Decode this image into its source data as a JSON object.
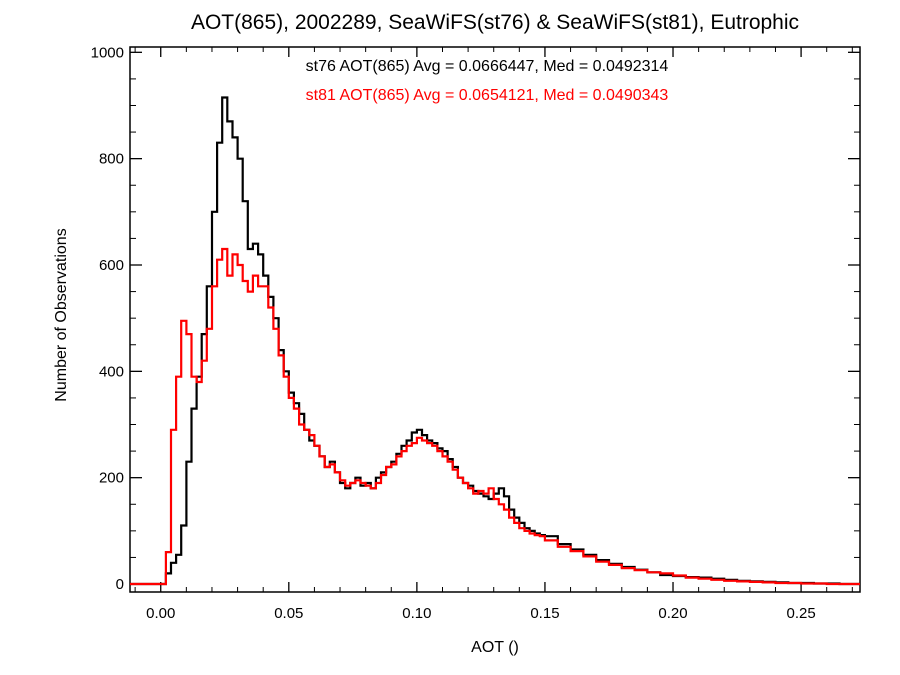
{
  "chart_data": {
    "type": "line",
    "style": "step-histogram",
    "title": "AOT(865), 2002289, SeaWiFS(st76) & SeaWiFS(st81), Eutrophic",
    "xlabel": "AOT ()",
    "ylabel": "Number of Observations",
    "xlim": [
      -0.012,
      0.273
    ],
    "ylim": [
      -15,
      1010
    ],
    "xticks": [
      {
        "value": 0.0,
        "label": "0.00"
      },
      {
        "value": 0.05,
        "label": "0.05"
      },
      {
        "value": 0.1,
        "label": "0.10"
      },
      {
        "value": 0.15,
        "label": "0.15"
      },
      {
        "value": 0.2,
        "label": "0.20"
      },
      {
        "value": 0.25,
        "label": "0.25"
      }
    ],
    "yticks": [
      {
        "value": 0,
        "label": "0"
      },
      {
        "value": 200,
        "label": "200"
      },
      {
        "value": 400,
        "label": "400"
      },
      {
        "value": 600,
        "label": "600"
      },
      {
        "value": 800,
        "label": "800"
      },
      {
        "value": 1000,
        "label": "1000"
      }
    ],
    "grid": false,
    "annotations": [
      {
        "text": "st76 AOT(865) Avg = 0.0666447, Med = 0.0492314",
        "color": "#000000"
      },
      {
        "text": "st81 AOT(865) Avg = 0.0654121, Med = 0.0490343",
        "color": "#ff0000"
      }
    ],
    "series": [
      {
        "color": "#000000",
        "x": [
          -0.012,
          0.0,
          0.002,
          0.004,
          0.006,
          0.008,
          0.01,
          0.012,
          0.014,
          0.016,
          0.018,
          0.02,
          0.022,
          0.024,
          0.026,
          0.028,
          0.03,
          0.032,
          0.034,
          0.036,
          0.038,
          0.04,
          0.042,
          0.044,
          0.046,
          0.048,
          0.05,
          0.052,
          0.054,
          0.056,
          0.058,
          0.06,
          0.062,
          0.064,
          0.066,
          0.068,
          0.07,
          0.072,
          0.074,
          0.076,
          0.078,
          0.08,
          0.082,
          0.084,
          0.086,
          0.088,
          0.09,
          0.092,
          0.094,
          0.096,
          0.098,
          0.1,
          0.102,
          0.104,
          0.106,
          0.108,
          0.11,
          0.112,
          0.114,
          0.116,
          0.118,
          0.12,
          0.122,
          0.124,
          0.126,
          0.128,
          0.13,
          0.132,
          0.134,
          0.136,
          0.138,
          0.14,
          0.142,
          0.144,
          0.146,
          0.148,
          0.15,
          0.155,
          0.16,
          0.165,
          0.17,
          0.175,
          0.18,
          0.185,
          0.19,
          0.195,
          0.2,
          0.205,
          0.21,
          0.215,
          0.22,
          0.225,
          0.23,
          0.235,
          0.24,
          0.245,
          0.25,
          0.255,
          0.26,
          0.265,
          0.27
        ],
        "y": [
          0,
          0,
          20,
          40,
          55,
          110,
          230,
          330,
          390,
          470,
          560,
          700,
          830,
          915,
          870,
          840,
          800,
          720,
          630,
          640,
          620,
          580,
          540,
          500,
          440,
          400,
          360,
          340,
          320,
          290,
          270,
          260,
          240,
          220,
          230,
          210,
          190,
          180,
          190,
          200,
          185,
          190,
          180,
          200,
          210,
          220,
          230,
          245,
          260,
          270,
          285,
          290,
          280,
          270,
          265,
          255,
          250,
          235,
          220,
          200,
          190,
          185,
          175,
          170,
          165,
          160,
          170,
          180,
          165,
          140,
          125,
          115,
          105,
          100,
          95,
          92,
          90,
          75,
          65,
          55,
          45,
          38,
          32,
          27,
          22,
          17,
          15,
          13,
          12,
          10,
          8,
          6,
          5,
          4,
          3,
          2,
          2,
          1,
          1,
          0,
          0
        ]
      },
      {
        "color": "#ff0000",
        "x": [
          -0.012,
          0.0,
          0.002,
          0.004,
          0.006,
          0.008,
          0.01,
          0.012,
          0.014,
          0.016,
          0.018,
          0.02,
          0.022,
          0.024,
          0.026,
          0.028,
          0.03,
          0.032,
          0.034,
          0.036,
          0.038,
          0.04,
          0.042,
          0.044,
          0.046,
          0.048,
          0.05,
          0.052,
          0.054,
          0.056,
          0.058,
          0.06,
          0.062,
          0.064,
          0.066,
          0.068,
          0.07,
          0.072,
          0.074,
          0.076,
          0.078,
          0.08,
          0.082,
          0.084,
          0.086,
          0.088,
          0.09,
          0.092,
          0.094,
          0.096,
          0.098,
          0.1,
          0.102,
          0.104,
          0.106,
          0.108,
          0.11,
          0.112,
          0.114,
          0.116,
          0.118,
          0.12,
          0.122,
          0.124,
          0.126,
          0.128,
          0.13,
          0.132,
          0.134,
          0.136,
          0.138,
          0.14,
          0.142,
          0.144,
          0.146,
          0.148,
          0.15,
          0.155,
          0.16,
          0.165,
          0.17,
          0.175,
          0.18,
          0.185,
          0.19,
          0.195,
          0.2,
          0.205,
          0.21,
          0.215,
          0.22,
          0.225,
          0.23,
          0.235,
          0.24,
          0.245,
          0.25,
          0.255,
          0.26,
          0.265,
          0.27
        ],
        "y": [
          0,
          0,
          60,
          290,
          390,
          495,
          470,
          390,
          380,
          420,
          480,
          560,
          610,
          630,
          580,
          620,
          600,
          570,
          550,
          580,
          560,
          560,
          520,
          480,
          430,
          390,
          350,
          330,
          300,
          290,
          280,
          260,
          240,
          220,
          225,
          210,
          195,
          185,
          190,
          195,
          190,
          185,
          180,
          190,
          205,
          220,
          225,
          240,
          250,
          260,
          265,
          275,
          270,
          265,
          260,
          250,
          240,
          230,
          215,
          200,
          190,
          180,
          170,
          175,
          170,
          180,
          160,
          150,
          140,
          125,
          115,
          105,
          100,
          95,
          92,
          90,
          82,
          70,
          62,
          52,
          42,
          36,
          30,
          26,
          22,
          20,
          16,
          12,
          10,
          8,
          6,
          5,
          4,
          3,
          2,
          2,
          1,
          1,
          0,
          0,
          0
        ]
      }
    ]
  }
}
